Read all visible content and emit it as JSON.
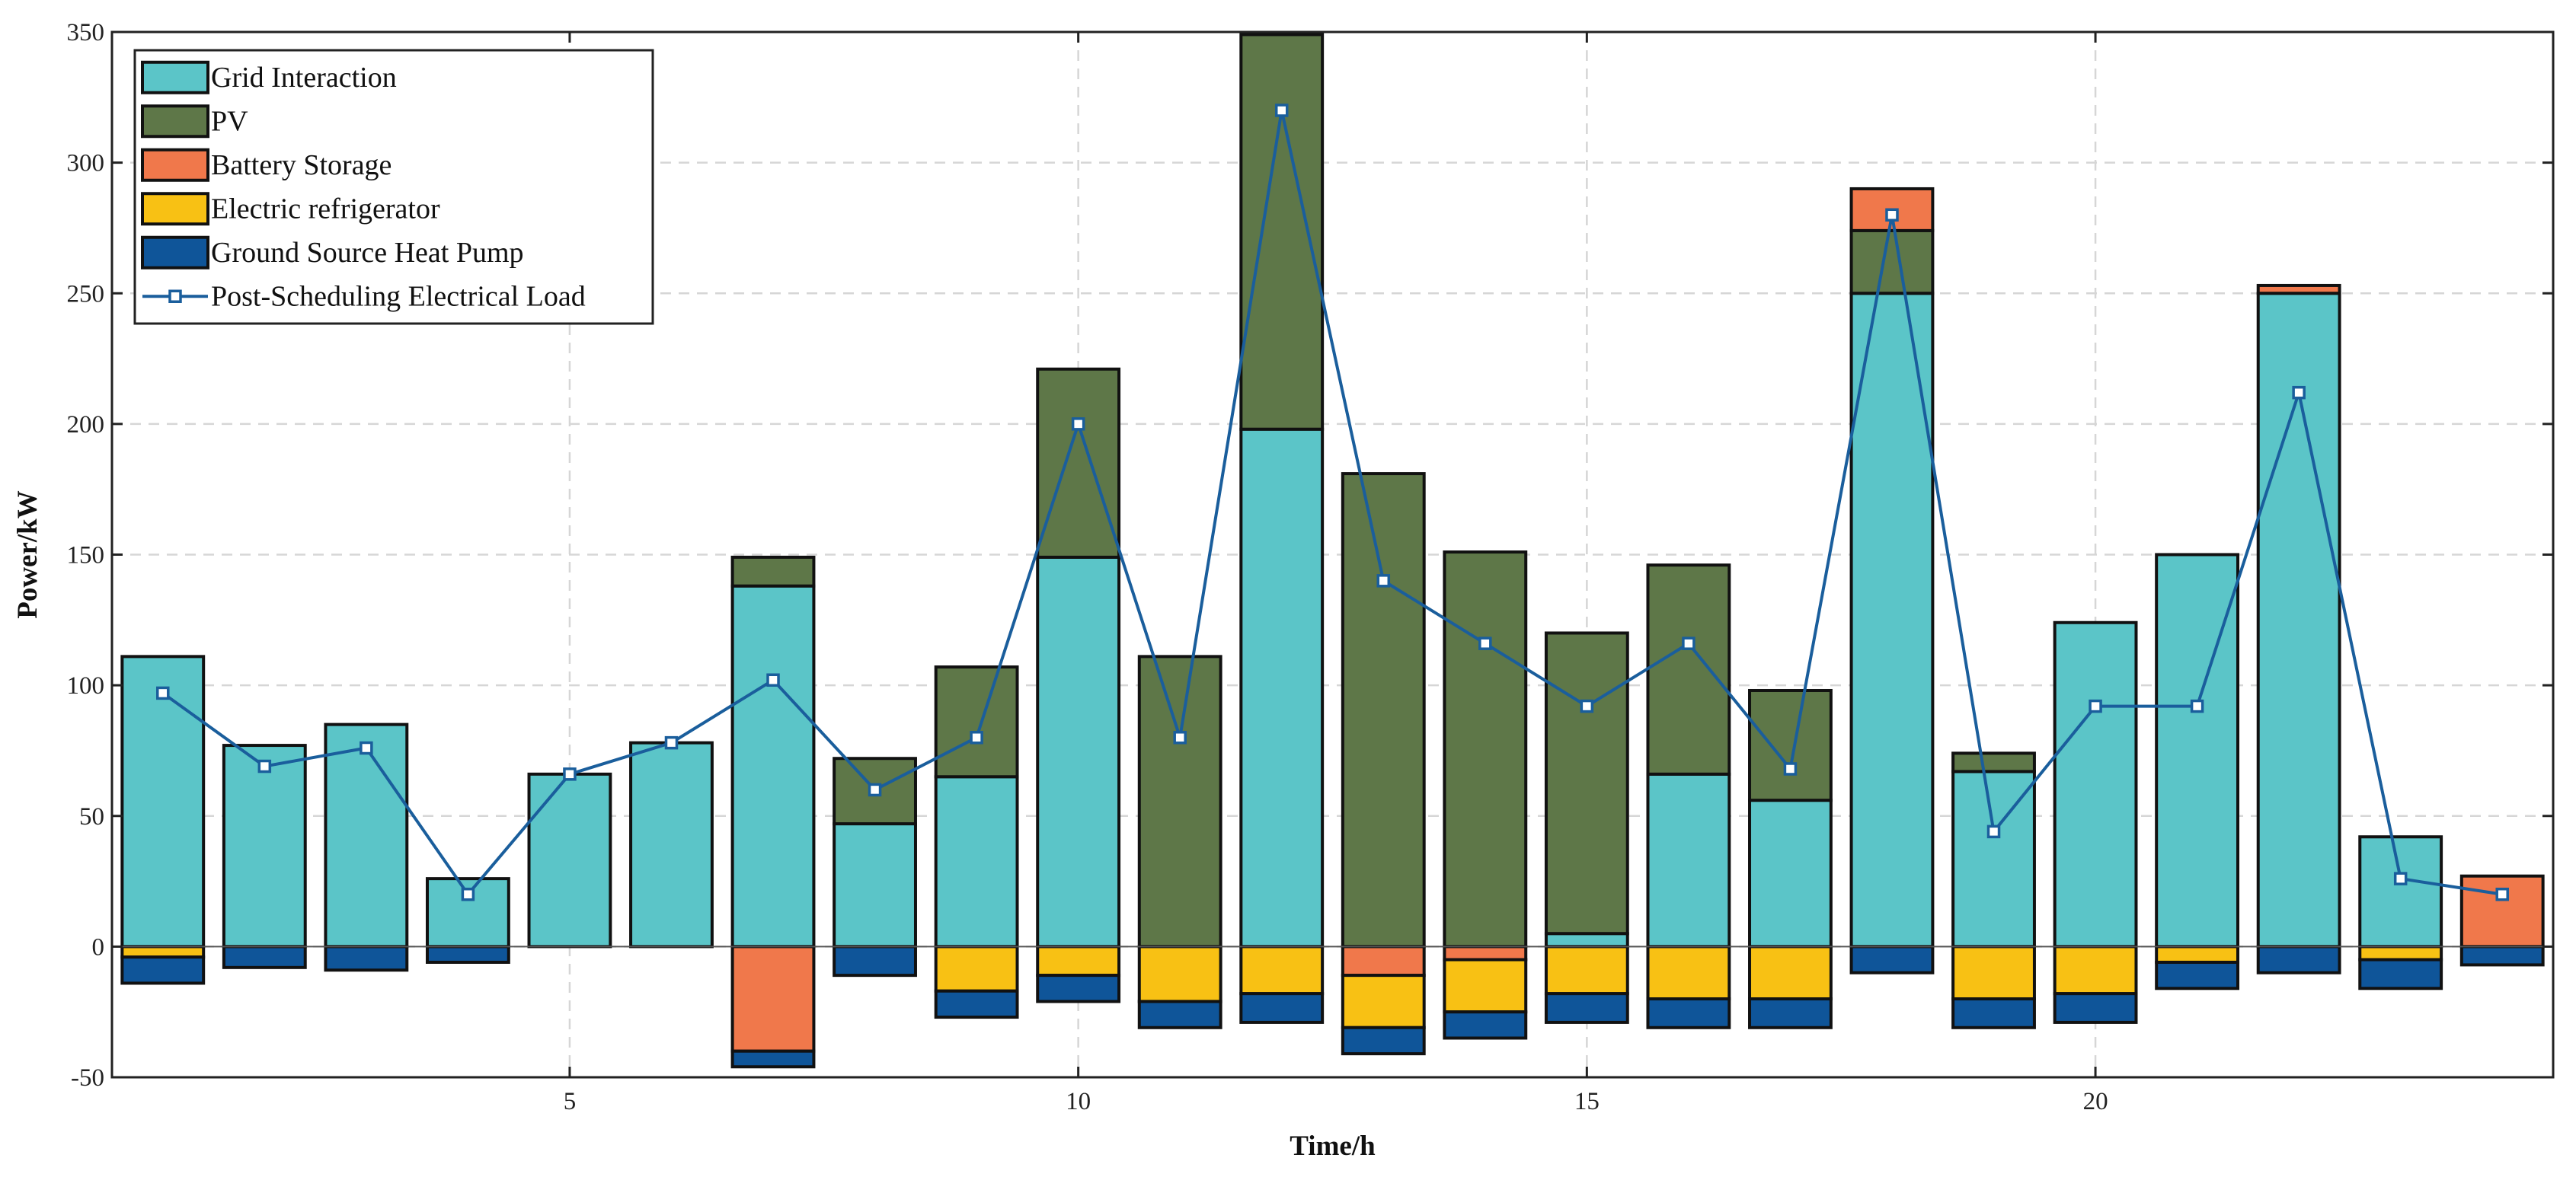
{
  "chart_data": {
    "type": "bar",
    "stacked": true,
    "title": "",
    "xlabel": "Time/h",
    "ylabel": "Power/kW",
    "xlim": [
      0.5,
      24.5
    ],
    "ylim": [
      -50,
      350
    ],
    "x_ticks": [
      5,
      10,
      15,
      20
    ],
    "y_ticks": [
      -50,
      0,
      50,
      100,
      150,
      200,
      250,
      300,
      350
    ],
    "grid": true,
    "legend_position": "top-left",
    "categories": [
      1,
      2,
      3,
      4,
      5,
      6,
      7,
      8,
      9,
      10,
      11,
      12,
      13,
      14,
      15,
      16,
      17,
      18,
      19,
      20,
      21,
      22,
      23,
      24
    ],
    "series": [
      {
        "name": "Grid Interaction",
        "kind": "bar",
        "color": "#5BC5C8",
        "values": [
          111,
          77,
          85,
          26,
          66,
          78,
          138,
          47,
          65,
          149,
          0,
          198,
          0,
          0,
          5,
          66,
          56,
          250,
          67,
          124,
          150,
          250,
          42,
          0
        ]
      },
      {
        "name": "PV",
        "kind": "bar",
        "color": "#5E7748",
        "values": [
          0,
          0,
          0,
          0,
          0,
          0,
          11,
          25,
          42,
          72,
          111,
          151,
          181,
          151,
          115,
          80,
          42,
          24,
          7,
          0,
          0,
          0,
          0,
          0
        ]
      },
      {
        "name": "Battery Storage",
        "kind": "bar",
        "color": "#F0784B",
        "values": [
          0,
          0,
          0,
          0,
          0,
          0,
          -40,
          0,
          0,
          0,
          0,
          0,
          -11,
          -5,
          0,
          0,
          0,
          16,
          0,
          0,
          0,
          3,
          0,
          27
        ]
      },
      {
        "name": "Electric refrigerator",
        "kind": "bar",
        "color": "#F8C114",
        "values": [
          -4,
          0,
          0,
          0,
          0,
          0,
          0,
          0,
          -17,
          -11,
          -21,
          -18,
          -20,
          -20,
          -18,
          -20,
          -20,
          0,
          -20,
          -18,
          -6,
          0,
          -5,
          0
        ]
      },
      {
        "name": "Ground Source Heat Pump",
        "kind": "bar",
        "color": "#0F5599",
        "values": [
          -10,
          -8,
          -9,
          -6,
          0,
          0,
          -6,
          -11,
          -10,
          -10,
          -10,
          -11,
          -10,
          -10,
          -11,
          -11,
          -11,
          -10,
          -11,
          -11,
          -10,
          -10,
          -11,
          -7
        ]
      },
      {
        "name": "Post-Scheduling Electrical Load",
        "kind": "line",
        "color": "#1A5E9C",
        "values": [
          97,
          69,
          76,
          20,
          66,
          78,
          102,
          60,
          80,
          200,
          80,
          320,
          140,
          116,
          92,
          116,
          68,
          280,
          44,
          92,
          92,
          212,
          26,
          20
        ]
      }
    ]
  }
}
